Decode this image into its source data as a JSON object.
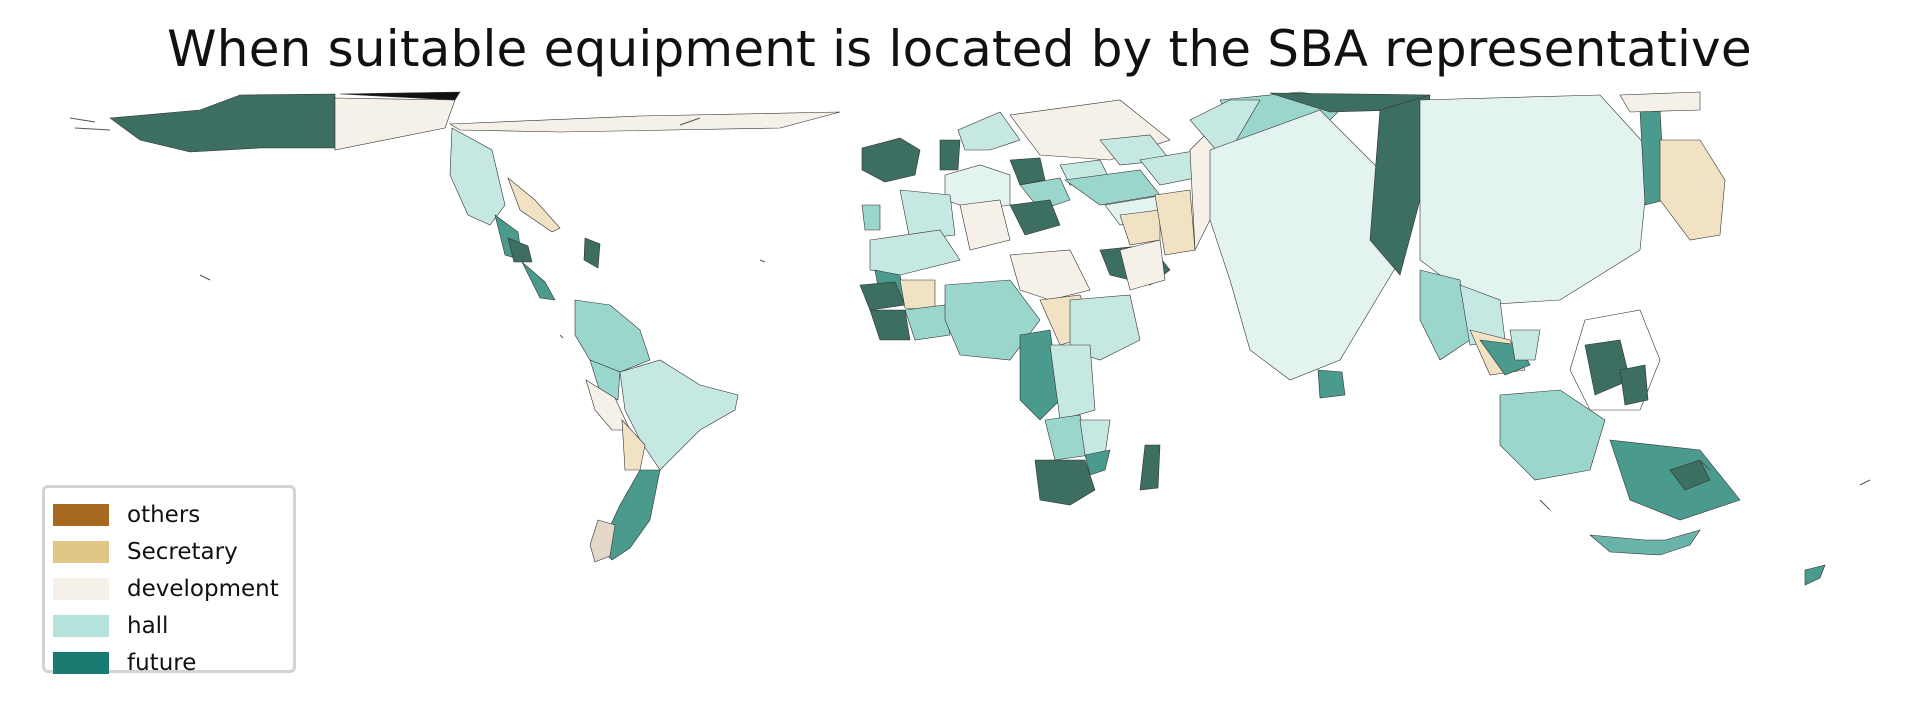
{
  "title": "When suitable equipment is located by the SBA representative",
  "legend": [
    {
      "label": "others",
      "color": "#a6691f"
    },
    {
      "label": "Secretary",
      "color": "#e2c686"
    },
    {
      "label": "development",
      "color": "#f5f1e8"
    },
    {
      "label": "hall",
      "color": "#b5e2da"
    },
    {
      "label": "future",
      "color": "#187a70"
    }
  ],
  "map_colors": {
    "future_dark": "#3d6e62",
    "future_mid": "#4a9a8e",
    "hall_mid": "#9ad6cb",
    "hall_light": "#c5e9e2",
    "hall_pale": "#e3f3ef",
    "development": "#f5f1e8",
    "secretary": "#f1e2c4",
    "outline": "#333333"
  }
}
